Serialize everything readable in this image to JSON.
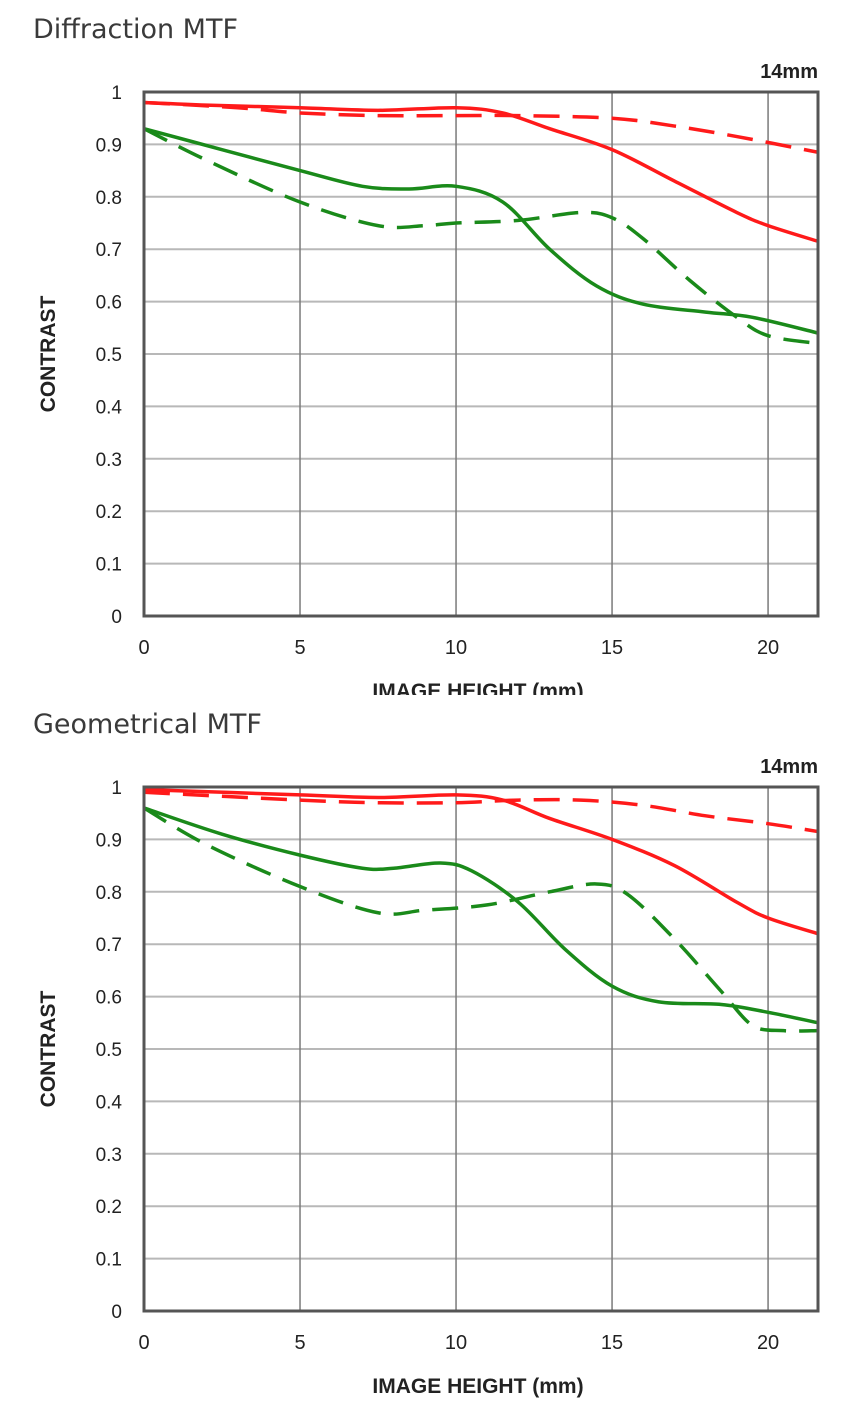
{
  "chart_data": [
    {
      "type": "line",
      "title": "Diffraction MTF",
      "annotation": "14mm",
      "xlabel": "IMAGE HEIGHT (mm)",
      "ylabel": "CONTRAST",
      "xlim": [
        0,
        21.6
      ],
      "ylim": [
        0,
        1
      ],
      "xticks": [
        "0",
        "5",
        "10",
        "15",
        "20"
      ],
      "yticks": [
        "0",
        "0.1",
        "0.2",
        "0.3",
        "0.4",
        "0.5",
        "0.6",
        "0.7",
        "0.8",
        "0.9",
        "1"
      ],
      "grid": true,
      "series": [
        {
          "name": "red-solid",
          "color": "#ff1a1a",
          "dashed": false,
          "x": [
            0,
            2,
            5,
            7.5,
            10,
            11.5,
            13,
            15,
            17,
            19,
            20,
            21.6
          ],
          "y": [
            0.98,
            0.975,
            0.97,
            0.965,
            0.97,
            0.96,
            0.93,
            0.89,
            0.83,
            0.77,
            0.745,
            0.715
          ]
        },
        {
          "name": "red-dashed",
          "color": "#ff1a1a",
          "dashed": true,
          "x": [
            0,
            3,
            5,
            7.5,
            10,
            12,
            15,
            17,
            19,
            21.6
          ],
          "y": [
            0.98,
            0.97,
            0.96,
            0.955,
            0.955,
            0.955,
            0.95,
            0.935,
            0.915,
            0.885
          ]
        },
        {
          "name": "green-solid",
          "color": "#1a8a1a",
          "dashed": false,
          "x": [
            0,
            2.5,
            5,
            7,
            8.5,
            10,
            11.5,
            13,
            14.5,
            16,
            18,
            19.5,
            21.6
          ],
          "y": [
            0.93,
            0.89,
            0.85,
            0.82,
            0.815,
            0.82,
            0.79,
            0.7,
            0.63,
            0.595,
            0.58,
            0.57,
            0.54
          ]
        },
        {
          "name": "green-dashed",
          "color": "#1a8a1a",
          "dashed": true,
          "x": [
            0,
            2,
            5,
            7.5,
            9,
            10,
            12,
            14,
            15,
            16,
            17.5,
            19,
            20,
            21.6
          ],
          "y": [
            0.93,
            0.87,
            0.79,
            0.745,
            0.745,
            0.75,
            0.755,
            0.77,
            0.76,
            0.72,
            0.64,
            0.57,
            0.535,
            0.52
          ]
        }
      ]
    },
    {
      "type": "line",
      "title": "Geometrical MTF",
      "annotation": "14mm",
      "xlabel": "IMAGE HEIGHT (mm)",
      "ylabel": "CONTRAST",
      "xlim": [
        0,
        21.6
      ],
      "ylim": [
        0,
        1
      ],
      "xticks": [
        "0",
        "5",
        "10",
        "15",
        "20"
      ],
      "yticks": [
        "0",
        "0.1",
        "0.2",
        "0.3",
        "0.4",
        "0.5",
        "0.6",
        "0.7",
        "0.8",
        "0.9",
        "1"
      ],
      "grid": true,
      "series": [
        {
          "name": "red-solid",
          "color": "#ff1a1a",
          "dashed": false,
          "x": [
            0,
            5,
            7.5,
            10,
            11.5,
            13,
            15,
            17,
            19,
            20,
            21.6
          ],
          "y": [
            0.995,
            0.985,
            0.98,
            0.985,
            0.975,
            0.94,
            0.9,
            0.85,
            0.78,
            0.75,
            0.72
          ]
        },
        {
          "name": "red-dashed",
          "color": "#ff1a1a",
          "dashed": true,
          "x": [
            0,
            5,
            7.5,
            10,
            12,
            14,
            16,
            18,
            20,
            21.6
          ],
          "y": [
            0.99,
            0.975,
            0.97,
            0.97,
            0.975,
            0.975,
            0.965,
            0.945,
            0.93,
            0.915
          ]
        },
        {
          "name": "green-solid",
          "color": "#1a8a1a",
          "dashed": false,
          "x": [
            0,
            2.5,
            5,
            7,
            8,
            9.5,
            10.5,
            12,
            13.5,
            15,
            16.5,
            18.5,
            20,
            21.6
          ],
          "y": [
            0.96,
            0.91,
            0.87,
            0.845,
            0.845,
            0.855,
            0.84,
            0.78,
            0.69,
            0.62,
            0.59,
            0.585,
            0.57,
            0.55
          ]
        },
        {
          "name": "green-dashed",
          "color": "#1a8a1a",
          "dashed": true,
          "x": [
            0,
            2,
            5,
            7.5,
            9,
            11,
            13,
            14.5,
            15.5,
            17,
            18.5,
            19.5,
            20.5,
            21.6
          ],
          "y": [
            0.96,
            0.89,
            0.81,
            0.76,
            0.765,
            0.775,
            0.8,
            0.815,
            0.795,
            0.71,
            0.61,
            0.545,
            0.535,
            0.535
          ]
        }
      ]
    }
  ]
}
